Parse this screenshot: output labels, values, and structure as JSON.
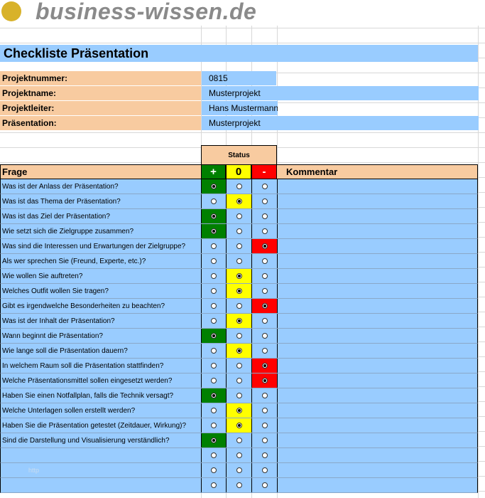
{
  "logo": "business-wissen.de",
  "title": "Checkliste Präsentation",
  "info": [
    {
      "label": "Projektnummer:",
      "value": "0815"
    },
    {
      "label": "Projektname:",
      "value": "Musterprojekt"
    },
    {
      "label": "Projektleiter:",
      "value": "Hans Mustermann"
    },
    {
      "label": "Präsentation:",
      "value": "Musterprojekt"
    }
  ],
  "status_header": "Status",
  "columns": {
    "question": "Frage",
    "options": [
      "+",
      "0",
      "-"
    ],
    "comment": "Kommentar"
  },
  "rows": [
    {
      "question": "Was ist der Anlass der Präsentation?",
      "selected": 0
    },
    {
      "question": "Was ist das Thema der Präsentation?",
      "selected": 1
    },
    {
      "question": "Was ist das Ziel der Präsentation?",
      "selected": 0
    },
    {
      "question": "Wie setzt sich die Zielgruppe zusammen?",
      "selected": 0
    },
    {
      "question": "Was sind die Interessen und Erwartungen der Zielgruppe?",
      "selected": 2
    },
    {
      "question": "Als wer sprechen Sie (Freund, Experte, etc.)?",
      "selected": null
    },
    {
      "question": "Wie wollen Sie auftreten?",
      "selected": 1
    },
    {
      "question": "Welches Outfit wollen Sie tragen?",
      "selected": 1
    },
    {
      "question": "Gibt es irgendwelche Besonderheiten zu beachten?",
      "selected": 2
    },
    {
      "question": "Was ist der Inhalt der Präsentation?",
      "selected": 1
    },
    {
      "question": "Wann beginnt die Präsentation?",
      "selected": 0
    },
    {
      "question": "Wie lange soll die Präsentation dauern?",
      "selected": 1
    },
    {
      "question": "In welchem Raum soll die Präsentation stattfinden?",
      "selected": 2
    },
    {
      "question": "Welche Präsentationsmittel sollen eingesetzt werden?",
      "selected": 2
    },
    {
      "question": "Haben Sie einen Notfallplan, falls die Technik versagt?",
      "selected": 0
    },
    {
      "question": "Welche Unterlagen sollen erstellt werden?",
      "selected": 1
    },
    {
      "question": "Haben Sie die Präsentation getestet (Zeitdauer, Wirkung)?",
      "selected": 1
    },
    {
      "question": "Sind die Darstellung und Visualisierung verständlich?",
      "selected": 0
    },
    {
      "question": null,
      "selected": null
    },
    {
      "question": null,
      "selected": null
    },
    {
      "question": null,
      "selected": null
    }
  ],
  "watermark": "http"
}
